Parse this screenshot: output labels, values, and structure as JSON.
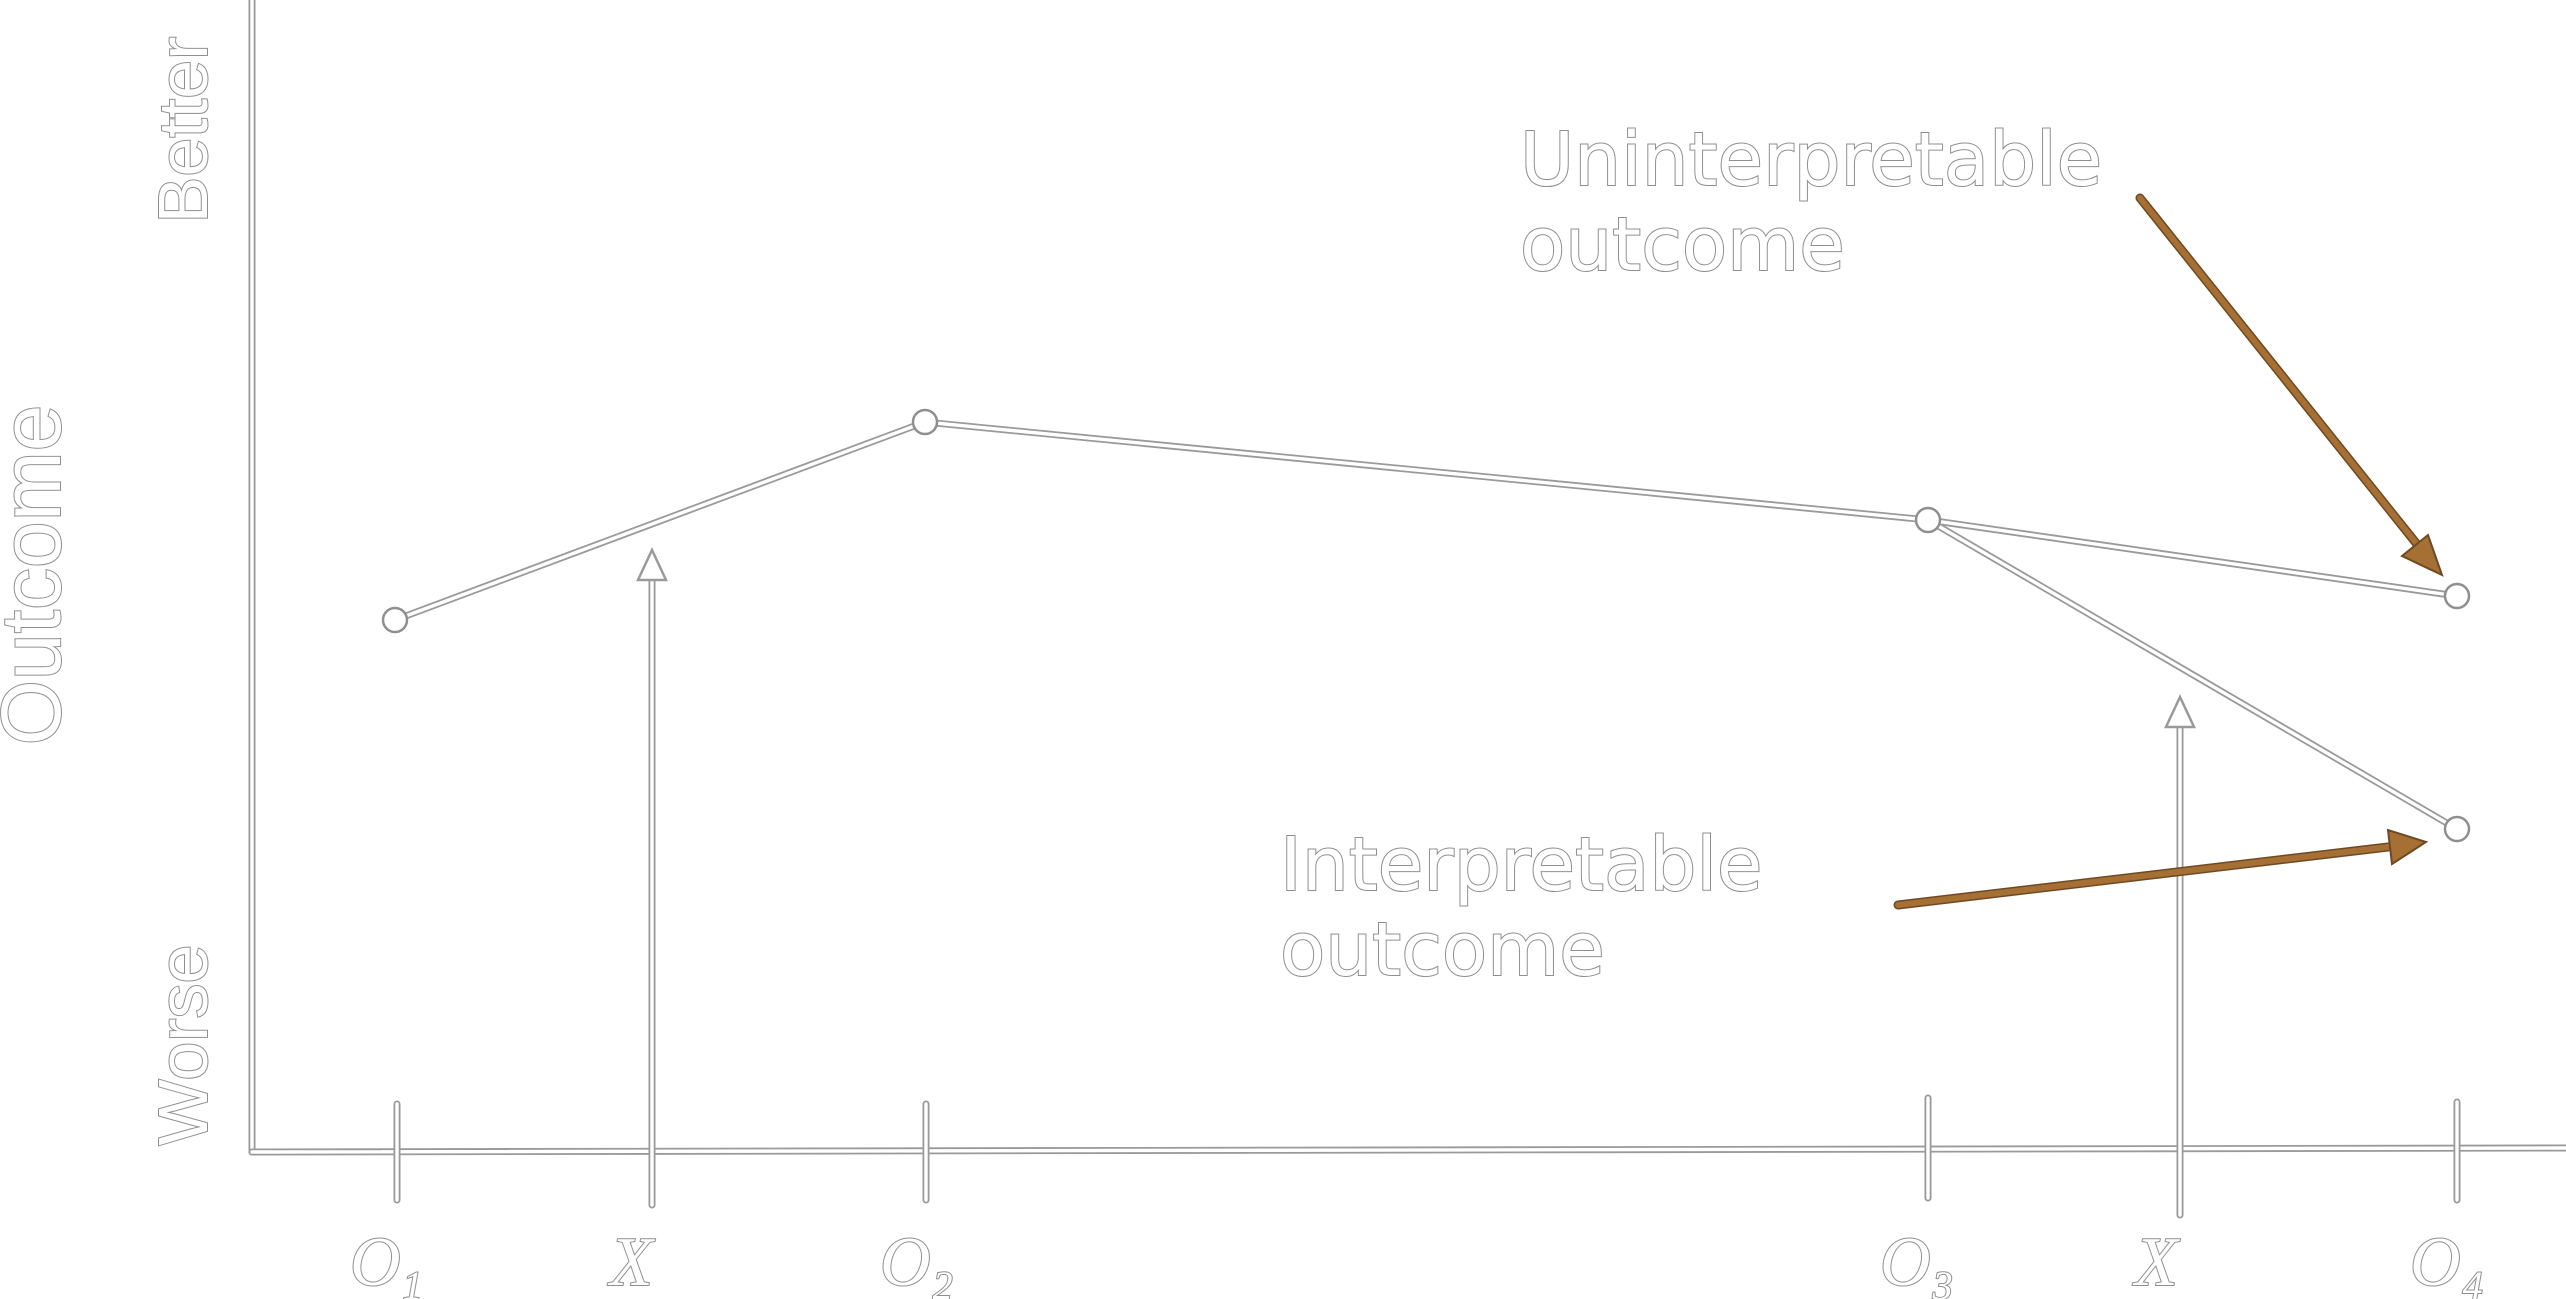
{
  "axes": {
    "y_title": "Outcome",
    "y_top": "Better",
    "y_bottom": "Worse"
  },
  "time_axis": [
    {
      "letter": "O",
      "sub": "1"
    },
    {
      "letter": "X",
      "sub": ""
    },
    {
      "letter": "O",
      "sub": "2"
    },
    {
      "letter": "O",
      "sub": "3"
    },
    {
      "letter": "X",
      "sub": ""
    },
    {
      "letter": "O",
      "sub": "4"
    }
  ],
  "annotations": {
    "uninterpretable": [
      "Uninterpretable",
      "outcome"
    ],
    "interpretable": [
      "Interpretable",
      "outcome"
    ]
  },
  "colors": {
    "arrow": "#a66f34",
    "arrow_edge": "#6e4a22",
    "outline": "#8f8f8f",
    "background": "#ffffff"
  }
}
